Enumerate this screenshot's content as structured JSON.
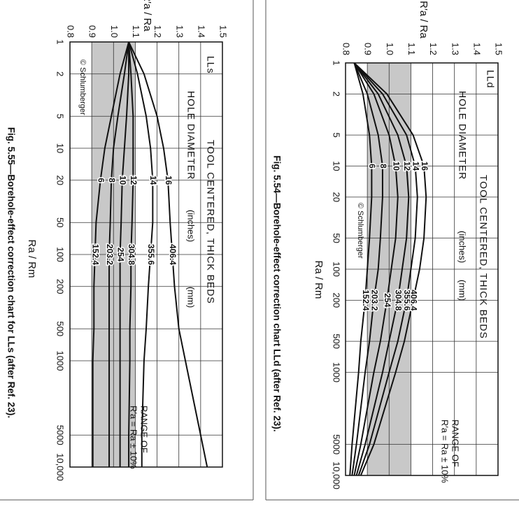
{
  "chart_data": [
    {
      "type": "line",
      "label": "LLs",
      "title": "TOOL CENTERED, THICK BEDS",
      "legend_title": "HOLE DIAMETER",
      "legend_units": [
        "(inches)",
        "(mm)"
      ],
      "annotation": [
        "RANGE OF",
        "R′a = Ra ± 10%"
      ],
      "band": [
        0.9,
        1.1
      ],
      "copyright": "© Schlumberger",
      "xlabel": "Ra / Rm",
      "ylabel": "R′a / Ra",
      "caption": "Fig. 5.55—Borehole-effect correction chart for LLs (after Ref. 23).",
      "xlog": true,
      "grid": true,
      "xlim": [
        1,
        10000
      ],
      "ylim": [
        0.8,
        1.5
      ],
      "xticks": [
        1,
        2,
        5,
        10,
        20,
        50,
        100,
        200,
        500,
        1000,
        5000,
        {
          "value": 10000,
          "label": "10,000"
        }
      ],
      "yticks": [
        0.8,
        0.9,
        {
          "value": 1,
          "label": "1.0"
        },
        1.1,
        1.2,
        1.3,
        1.4,
        1.5
      ],
      "x": [
        1,
        2,
        5,
        10,
        20,
        50,
        100,
        200,
        500,
        1000,
        5000,
        10000
      ],
      "series": [
        {
          "name": "6",
          "mm": "152.4",
          "color": "#111",
          "values": [
            1.07,
            1.03,
            0.99,
            0.96,
            0.94,
            0.92,
            0.915,
            0.91,
            0.91,
            0.905,
            0.905,
            0.905
          ]
        },
        {
          "name": "8",
          "mm": "203.2",
          "color": "#111",
          "values": [
            1.07,
            1.05,
            1.02,
            1.0,
            0.99,
            0.985,
            0.98,
            0.98,
            0.98,
            0.98,
            0.98,
            0.98
          ]
        },
        {
          "name": "10",
          "mm": "254",
          "color": "#111",
          "values": [
            1.07,
            1.07,
            1.06,
            1.05,
            1.04,
            1.035,
            1.03,
            1.03,
            1.03,
            1.03,
            1.03,
            1.03
          ]
        },
        {
          "name": "12",
          "mm": "304.8",
          "color": "#111",
          "values": [
            1.07,
            1.08,
            1.09,
            1.09,
            1.09,
            1.085,
            1.08,
            1.08,
            1.075,
            1.075,
            1.07,
            1.07
          ]
        },
        {
          "name": "14",
          "mm": "355.6",
          "color": "#111",
          "values": [
            1.07,
            1.11,
            1.15,
            1.17,
            1.18,
            1.18,
            1.17,
            1.16,
            1.15,
            1.14,
            1.13,
            1.13
          ]
        },
        {
          "name": "16",
          "mm": "406.4",
          "color": "#111",
          "values": [
            1.07,
            1.14,
            1.2,
            1.23,
            1.25,
            1.26,
            1.27,
            1.28,
            1.3,
            1.33,
            1.4,
            1.43
          ]
        }
      ]
    },
    {
      "type": "line",
      "label": "LLd",
      "title": "TOOL CENTERED, THICK BEDS",
      "legend_title": "HOLE DIAMETER",
      "legend_units": [
        "(inches)",
        "(mm)"
      ],
      "annotation": [
        "RANGE OF",
        "R′a = Ra ± 10%"
      ],
      "band": [
        0.9,
        1.1
      ],
      "copyright": "© Schlumberger",
      "xlabel": "Ra / Rm",
      "ylabel": "R′a / Ra",
      "caption": "Fig. 5.54—Borehole-effect correction chart LLd (after Ref. 23).",
      "xlog": true,
      "grid": true,
      "xlim": [
        1,
        10000
      ],
      "ylim": [
        0.8,
        1.5
      ],
      "xticks": [
        1,
        2,
        5,
        10,
        20,
        50,
        100,
        200,
        500,
        1000,
        5000,
        {
          "value": 10000,
          "label": "10,000"
        }
      ],
      "yticks": [
        0.8,
        0.9,
        {
          "value": 1,
          "label": "1.0"
        },
        1.1,
        1.2,
        1.3,
        1.4,
        1.5
      ],
      "x": [
        1,
        2,
        5,
        10,
        20,
        50,
        100,
        200,
        500,
        1000,
        5000,
        10000
      ],
      "series": [
        {
          "name": "6",
          "mm": "152.4",
          "color": "#111",
          "values": [
            0.84,
            0.88,
            0.91,
            0.92,
            0.92,
            0.91,
            0.9,
            0.89,
            0.87,
            0.86,
            0.83,
            0.82
          ]
        },
        {
          "name": "8",
          "mm": "203.2",
          "color": "#111",
          "values": [
            0.84,
            0.9,
            0.95,
            0.97,
            0.97,
            0.96,
            0.95,
            0.93,
            0.91,
            0.89,
            0.85,
            0.83
          ]
        },
        {
          "name": "10",
          "mm": "254",
          "color": "#111",
          "values": [
            0.84,
            0.93,
            1.0,
            1.03,
            1.04,
            1.03,
            1.01,
            0.99,
            0.96,
            0.93,
            0.87,
            0.84
          ]
        },
        {
          "name": "12",
          "mm": "304.8",
          "color": "#111",
          "values": [
            0.84,
            0.95,
            1.04,
            1.08,
            1.09,
            1.08,
            1.06,
            1.04,
            1.0,
            0.97,
            0.89,
            0.85
          ]
        },
        {
          "name": "14",
          "mm": "355.6",
          "color": "#111",
          "values": [
            0.84,
            0.97,
            1.08,
            1.12,
            1.13,
            1.12,
            1.1,
            1.08,
            1.04,
            1.0,
            0.91,
            0.86
          ]
        },
        {
          "name": "16",
          "mm": "406.4",
          "color": "#111",
          "values": [
            0.84,
            0.99,
            1.11,
            1.16,
            1.17,
            1.16,
            1.14,
            1.11,
            1.07,
            1.03,
            0.93,
            0.87
          ]
        }
      ]
    }
  ]
}
